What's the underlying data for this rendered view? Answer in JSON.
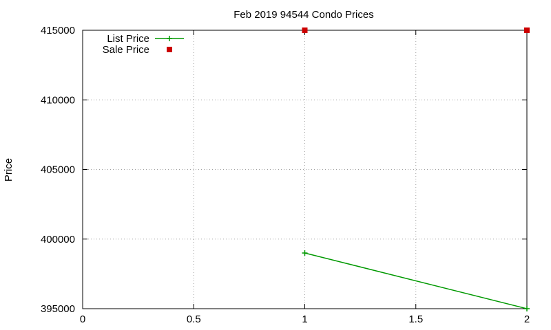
{
  "chart_data": {
    "type": "line",
    "title": "Feb 2019 94544 Condo Prices",
    "xlabel": "",
    "ylabel": "Price",
    "xlim": [
      0,
      2
    ],
    "ylim": [
      395000,
      415000
    ],
    "x_ticks": [
      "0",
      "0.5",
      "1",
      "1.5",
      "2"
    ],
    "y_ticks": [
      "395000",
      "400000",
      "405000",
      "410000",
      "415000"
    ],
    "grid": true,
    "legend_position": "top-left",
    "series": [
      {
        "name": "List Price",
        "style": "line-with-plus-markers",
        "color": "#009900",
        "x": [
          1,
          2
        ],
        "y": [
          399000,
          395000
        ]
      },
      {
        "name": "Sale Price",
        "style": "square-markers",
        "color": "#cc0000",
        "x": [
          1,
          2
        ],
        "y": [
          415000,
          415000
        ]
      }
    ]
  }
}
